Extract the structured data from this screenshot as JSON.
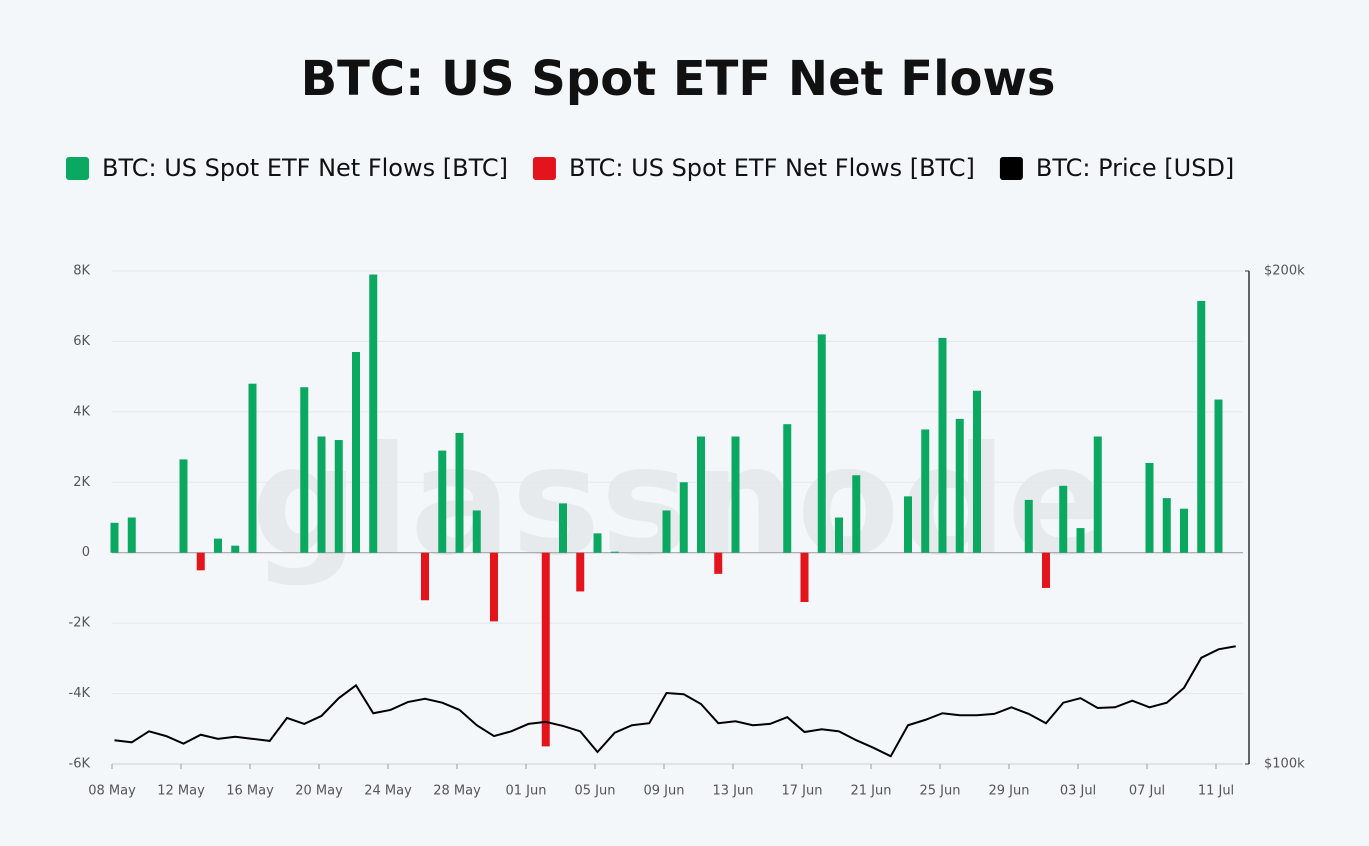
{
  "chart_data": {
    "type": "bar-line",
    "title": "BTC: US Spot ETF Net Flows",
    "watermark": "glassnode",
    "categories": [
      "08 May",
      null,
      null,
      null,
      "12 May",
      null,
      null,
      null,
      "16 May",
      null,
      null,
      null,
      "20 May",
      null,
      null,
      null,
      "24 May",
      null,
      null,
      null,
      "28 May",
      null,
      null,
      null,
      "01 Jun",
      null,
      null,
      null,
      "05 Jun",
      null,
      null,
      null,
      "09 Jun",
      null,
      null,
      null,
      "13 Jun",
      null,
      null,
      null,
      "17 Jun",
      null,
      null,
      null,
      "21 Jun",
      null,
      null,
      null,
      "25 Jun",
      null,
      null,
      null,
      "29 Jun",
      null,
      null,
      null,
      "03 Jul",
      null,
      null,
      null,
      "07 Jul",
      null,
      null,
      null,
      "11 Jul",
      null
    ],
    "series": [
      {
        "name": "BTC: US Spot ETF Net Flows [BTC]",
        "color": "#0ba862",
        "values": [
          850,
          1000,
          0,
          0,
          2650,
          null,
          400,
          200,
          4800,
          0,
          0,
          4700,
          3300,
          3200,
          5700,
          7900,
          0,
          0,
          null,
          2900,
          3400,
          1200,
          null,
          0,
          0,
          null,
          1400,
          null,
          550,
          30,
          0,
          0,
          1200,
          2000,
          3300,
          null,
          3300,
          0,
          0,
          3650,
          null,
          6200,
          1000,
          2200,
          0,
          0,
          1600,
          3500,
          6100,
          3800,
          4600,
          0,
          0,
          1500,
          null,
          1900,
          700,
          3300,
          0,
          0,
          2550,
          1550,
          1250,
          7150,
          4350,
          null
        ]
      },
      {
        "name": "BTC: US Spot ETF Net Flows [BTC]",
        "color": "#e3141b",
        "values": [
          null,
          null,
          null,
          null,
          null,
          -500,
          null,
          null,
          null,
          null,
          null,
          null,
          null,
          null,
          null,
          null,
          null,
          null,
          -1350,
          null,
          null,
          null,
          -1950,
          null,
          null,
          -5500,
          null,
          -1100,
          null,
          null,
          null,
          null,
          null,
          null,
          null,
          -600,
          null,
          null,
          null,
          null,
          -1400,
          null,
          null,
          null,
          null,
          null,
          null,
          null,
          null,
          null,
          null,
          null,
          null,
          null,
          -1000,
          null,
          null,
          null,
          null,
          null,
          null,
          null,
          null,
          null,
          null,
          null
        ]
      },
      {
        "name": "BTC: Price [USD]",
        "color": "#000000",
        "axis": "y2",
        "type": "line",
        "values": [
          103400,
          103100,
          104700,
          104000,
          102900,
          104200,
          103600,
          103900,
          103600,
          103300,
          106700,
          105800,
          107000,
          109700,
          111700,
          107400,
          107900,
          109100,
          109600,
          109000,
          107900,
          105600,
          104000,
          104700,
          105800,
          106100,
          105500,
          104700,
          101700,
          104500,
          105600,
          105900,
          110500,
          110300,
          108800,
          105900,
          106200,
          105600,
          105800,
          106800,
          104600,
          105000,
          104700,
          103400,
          102300,
          101100,
          105600,
          106400,
          107400,
          107100,
          107100,
          107300,
          108300,
          107300,
          105900,
          109000,
          109700,
          108200,
          108300,
          109300,
          108300,
          109000,
          111300,
          116100,
          117500,
          118000
        ]
      }
    ],
    "ylim": [
      -6000,
      8000
    ],
    "yticks": [
      {
        "value": -6000,
        "label": "-6K"
      },
      {
        "value": -4000,
        "label": "-4K"
      },
      {
        "value": -2000,
        "label": "-2K"
      },
      0,
      {
        "value": 2000,
        "label": "2K"
      },
      {
        "value": 4000,
        "label": "4K"
      },
      {
        "value": 6000,
        "label": "6K"
      },
      {
        "value": 8000,
        "label": "8K"
      }
    ],
    "y2lim": [
      100000,
      200000
    ],
    "y2ticks": [
      {
        "value": 100000,
        "label": "$100k"
      },
      {
        "value": 200000,
        "label": "$200k"
      }
    ],
    "y2log": true,
    "grid": true,
    "legend": "top"
  }
}
